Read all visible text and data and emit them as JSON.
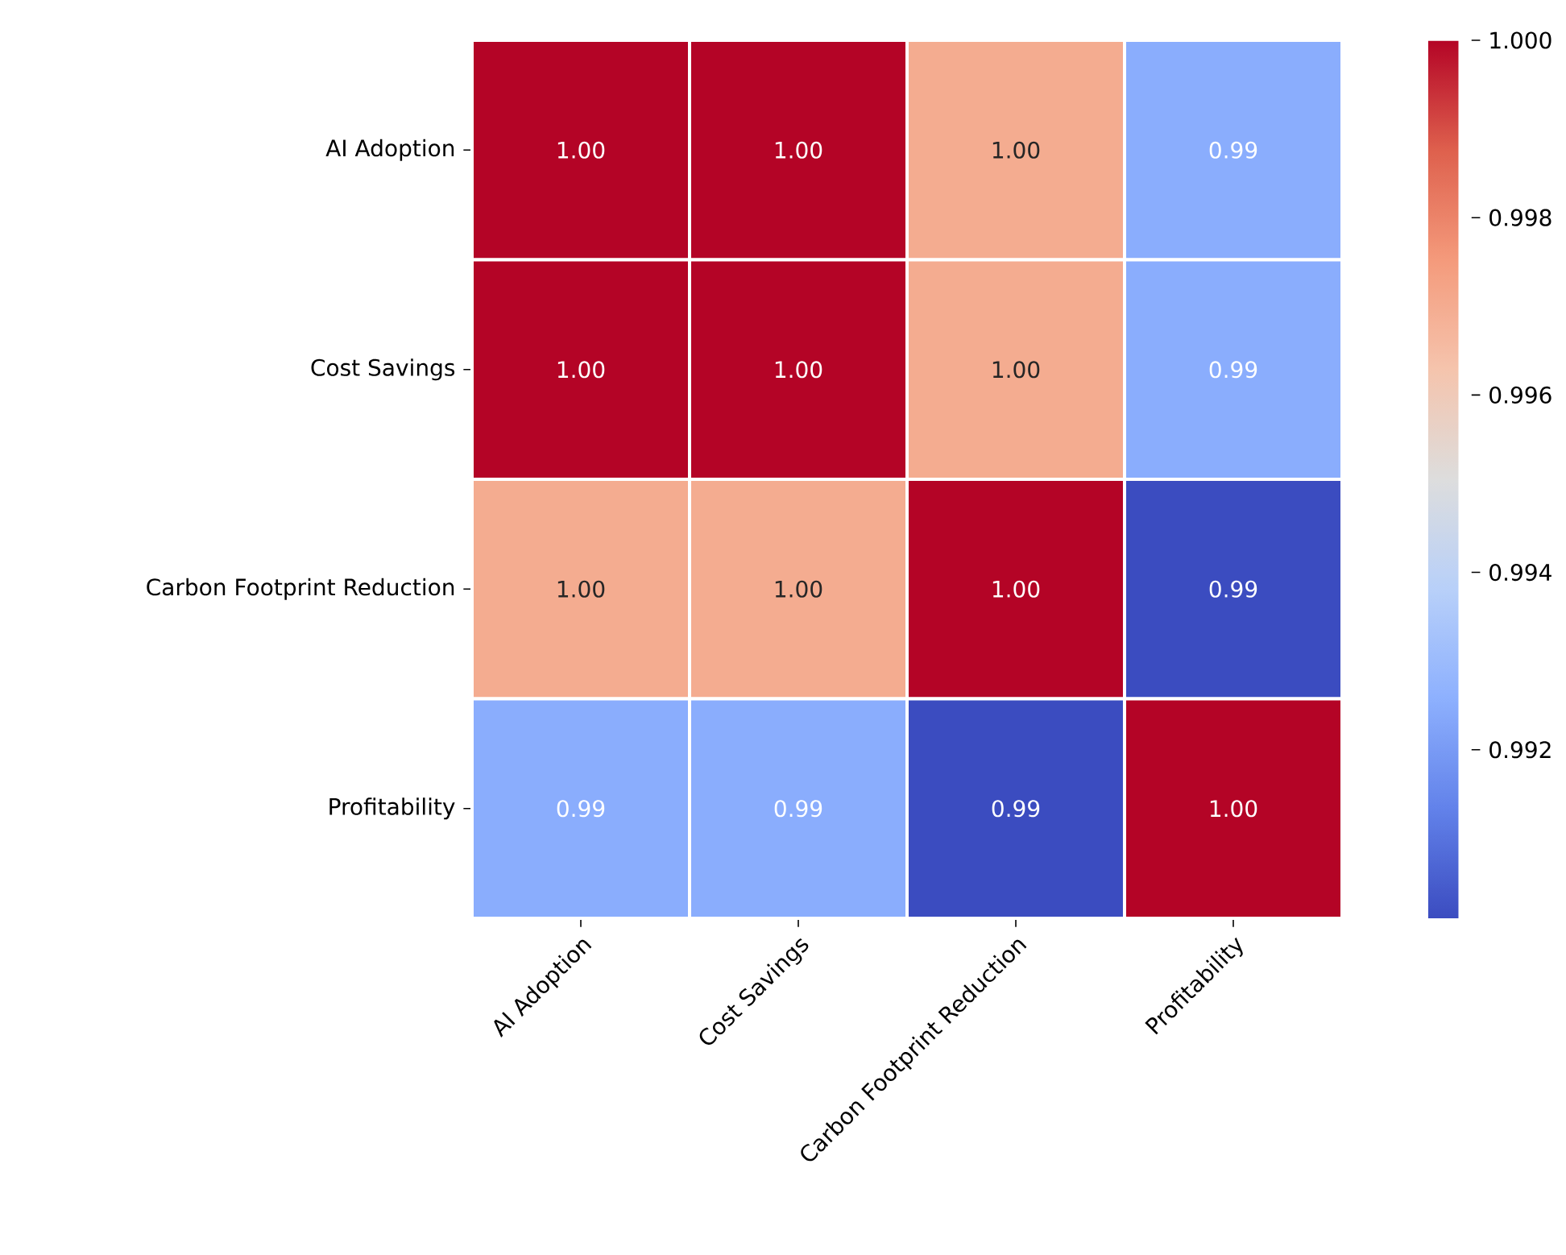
{
  "chart_data": {
    "type": "heatmap",
    "categories": [
      "AI Adoption",
      "Cost Savings",
      "Carbon Footprint Reduction",
      "Profitability"
    ],
    "y_categories": [
      "AI Adoption",
      "Cost Savings",
      "Carbon Footprint Reduction",
      "Profitability"
    ],
    "cells": [
      [
        1.0,
        1.0,
        0.997,
        0.9925
      ],
      [
        1.0,
        1.0,
        0.997,
        0.9925
      ],
      [
        0.997,
        0.997,
        1.0,
        0.9901
      ],
      [
        0.9925,
        0.9925,
        0.9901,
        1.0
      ]
    ],
    "cell_labels": [
      [
        "1.00",
        "1.00",
        "1.00",
        "0.99"
      ],
      [
        "1.00",
        "1.00",
        "1.00",
        "0.99"
      ],
      [
        "1.00",
        "1.00",
        "1.00",
        "0.99"
      ],
      [
        "0.99",
        "0.99",
        "0.99",
        "1.00"
      ]
    ],
    "clim": [
      0.9901,
      1.0
    ],
    "cticks": [
      0.992,
      0.994,
      0.996,
      0.998,
      {
        "value": 1.0,
        "label": "1.000"
      }
    ]
  }
}
